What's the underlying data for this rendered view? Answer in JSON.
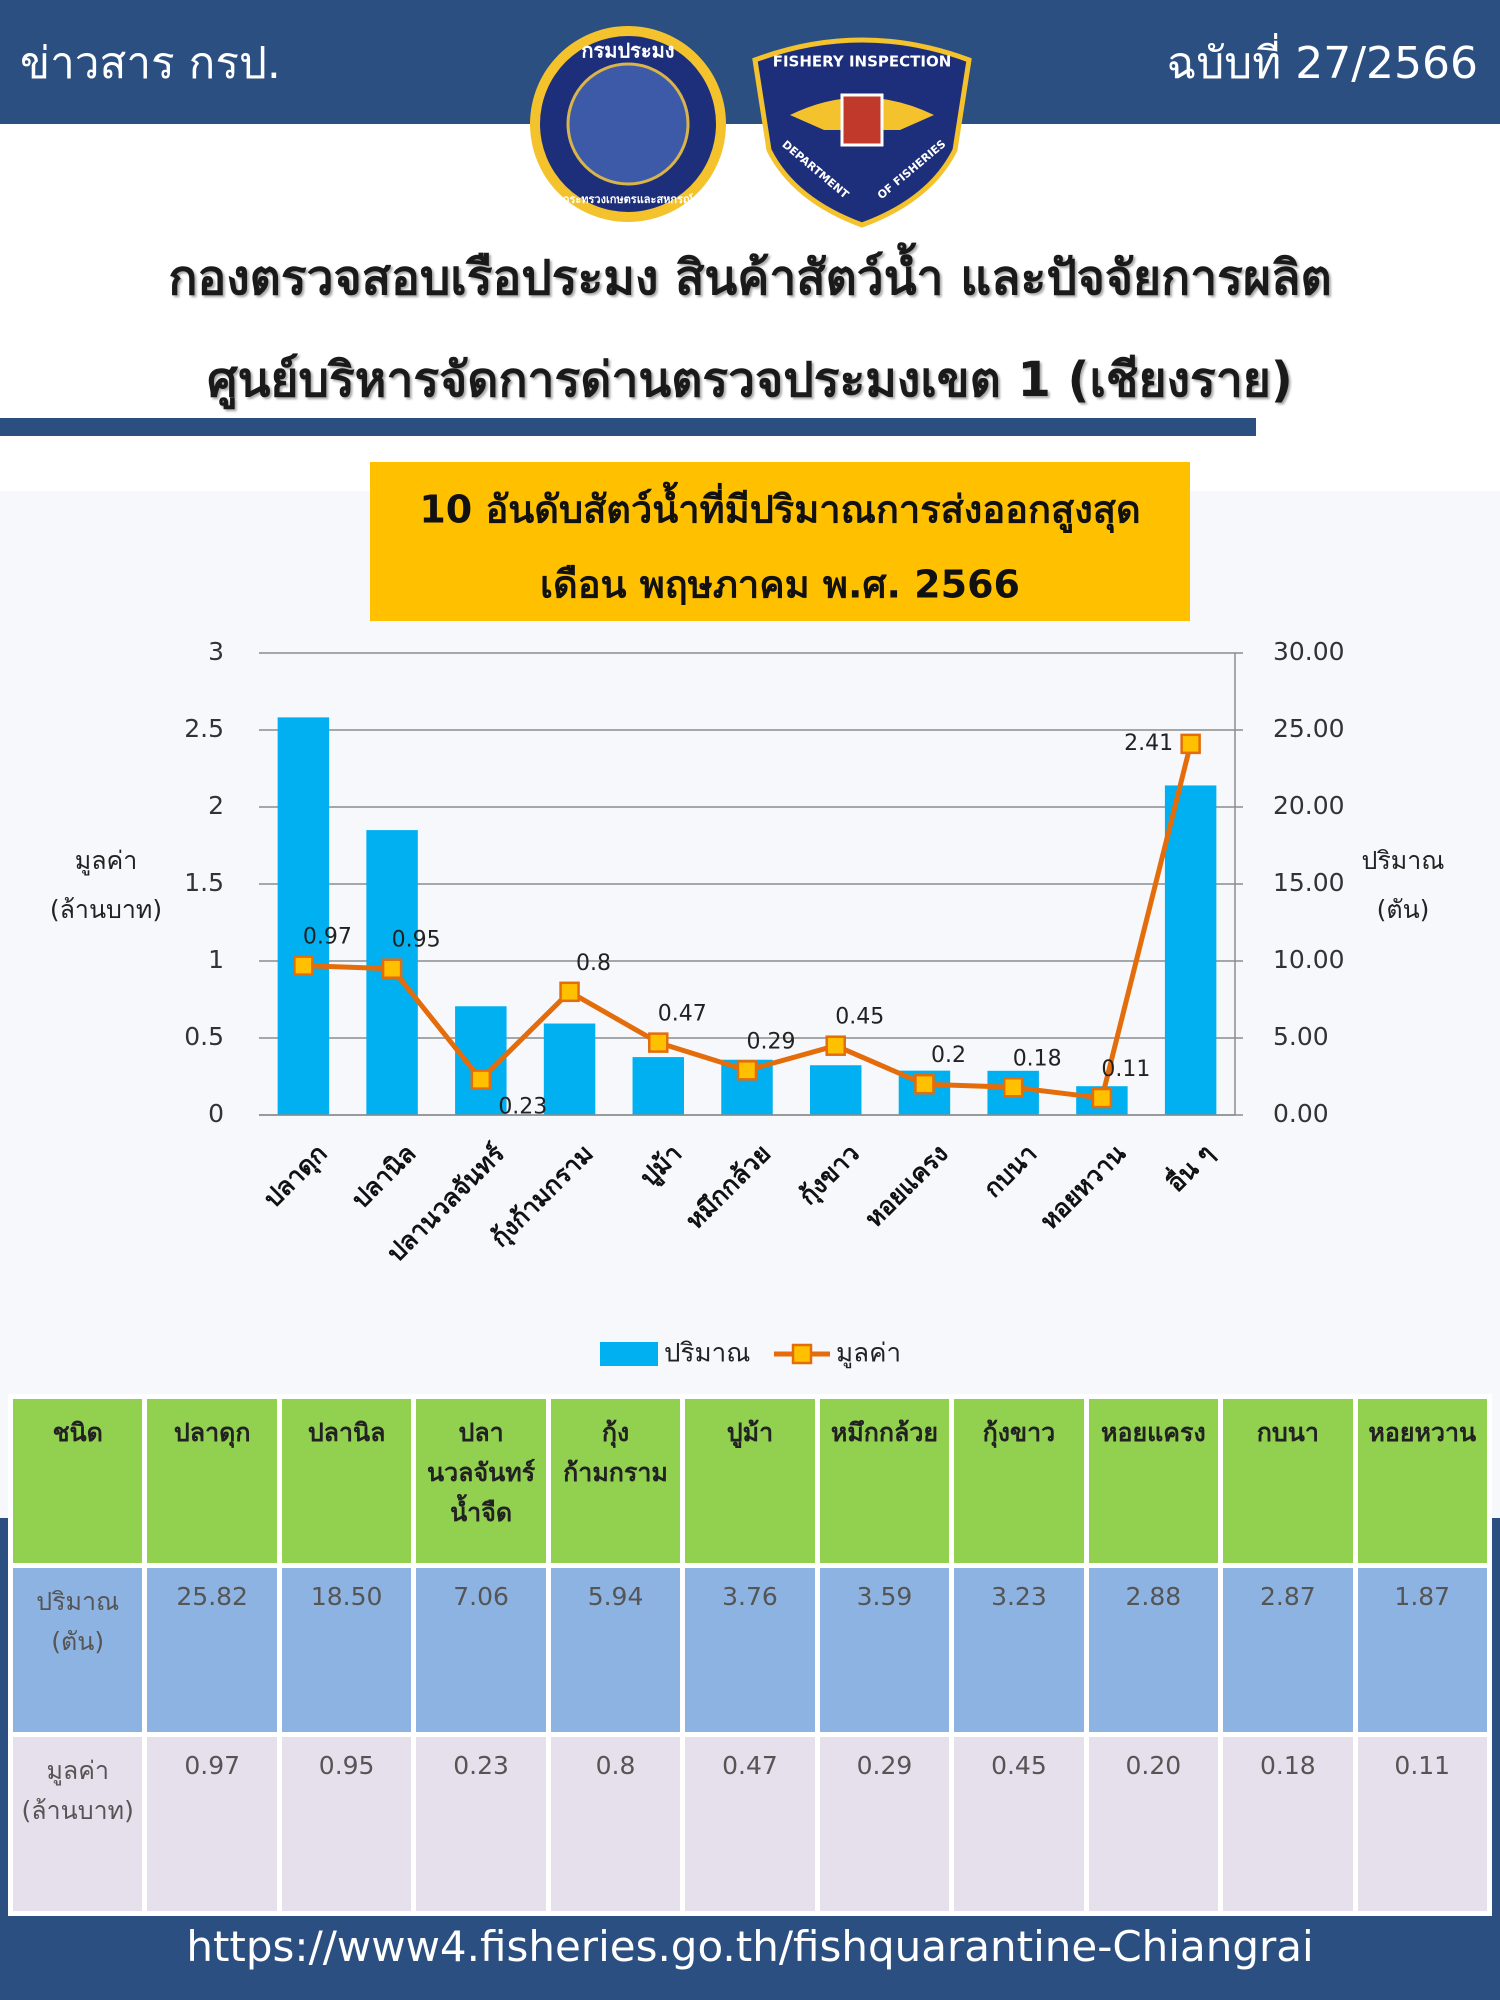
{
  "header": {
    "left": "ข่าวสาร กรป.",
    "right": "ฉบับที่ 27/2566",
    "logo_texts": [
      "กรมประมง",
      "กระทรวงเกษตรและสหกรณ์",
      "FISHERY INSPECTION",
      "DEPARTMENT",
      "OF FISHERIES"
    ]
  },
  "title": [
    "กองตรวจสอบเรือประมง สินค้าสัตว์น้ำ และปัจจัยการผลิต",
    "ศูนย์บริหารจัดการด่านตรวจประมงเขต 1 (เชียงราย)"
  ],
  "chart_data": {
    "type": "combo",
    "title": [
      "10 อันดับสัตว์น้ำที่มีปริมาณการส่งออกสูงสุด",
      "เดือน พฤษภาคม พ.ศ. 2566"
    ],
    "y_label": [
      "มูลค่า",
      "(ล้านบาท)"
    ],
    "y2_label": [
      "ปริมาณ",
      "(ตัน)"
    ],
    "categories": [
      "ปลาดุก",
      "ปลานิล",
      "ปลานวลจันทร์",
      "กุ้งก้ามกราม",
      "ปูม้า",
      "หมึกกล้วย",
      "กุ้งขาว",
      "หอยแครง",
      "กบนา",
      "หอยหวาน",
      "อื่น ๆ"
    ],
    "series": [
      {
        "name": "ปริมาณ",
        "type": "bar",
        "axis": "y2",
        "color": "#00b0f0",
        "values": [
          25.82,
          18.5,
          7.06,
          5.94,
          3.76,
          3.59,
          3.23,
          2.88,
          2.87,
          1.87,
          21.4
        ]
      },
      {
        "name": "มูลค่า",
        "type": "line",
        "color": "#e46c0a",
        "marker_color": "#ffc000",
        "data_labels": true,
        "values": [
          0.97,
          0.95,
          0.23,
          0.8,
          0.47,
          0.29,
          0.45,
          0.2,
          0.18,
          0.11,
          2.41
        ]
      }
    ],
    "ylim": [
      0,
      3
    ],
    "yticks": [
      0,
      0.5,
      1,
      1.5,
      2,
      2.5,
      3
    ],
    "y2lim": [
      0,
      30
    ],
    "y2ticks": [
      {
        "value": 0,
        "label": "0.00"
      },
      {
        "value": 5,
        "label": "5.00"
      },
      {
        "value": 10,
        "label": "10.00"
      },
      {
        "value": 15,
        "label": "15.00"
      },
      {
        "value": 20,
        "label": "20.00"
      },
      {
        "value": 25,
        "label": "25.00"
      },
      {
        "value": 30,
        "label": "30.00"
      }
    ],
    "grid": true,
    "legend": "bottom"
  },
  "table": {
    "columns": [
      "ชนิด",
      "ปลาดุก",
      "ปลานิล",
      "ปลานวลจันทร์น้ำจืด",
      "กุ้งก้ามกราม",
      "ปูม้า",
      "หมึกกล้วย",
      "กุ้งขาว",
      "หอยแครง",
      "กบนา",
      "หอยหวาน"
    ],
    "rows": [
      [
        "ปริมาณ (ตัน)",
        "25.82",
        "18.50",
        "7.06",
        "5.94",
        "3.76",
        "3.59",
        "3.23",
        "2.88",
        "2.87",
        "1.87"
      ],
      [
        "มูลค่า (ล้านบาท)",
        "0.97",
        "0.95",
        "0.23",
        "0.8",
        "0.47",
        "0.29",
        "0.45",
        "0.20",
        "0.18",
        "0.11"
      ]
    ]
  },
  "footer": {
    "url": "https://www4.fisheries.go.th/fishquarantine-Chiangrai"
  }
}
